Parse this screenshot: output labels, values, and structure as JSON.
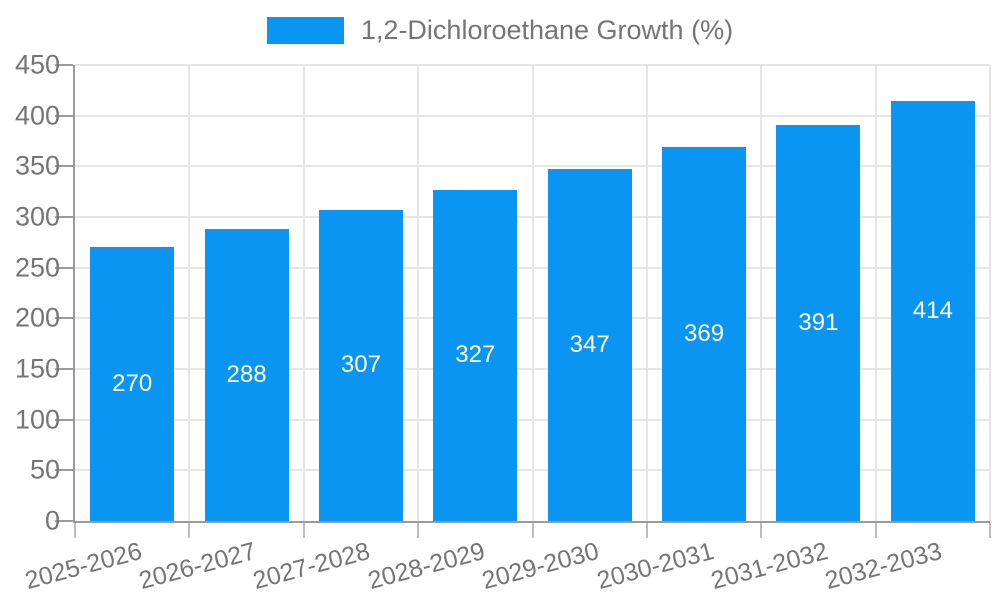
{
  "chart_data": {
    "type": "bar",
    "title": "",
    "xlabel": "",
    "ylabel": "",
    "legend": {
      "label": "1,2-Dichloroethane Growth (%)",
      "swatch_color": "#0b95f2",
      "position": "top"
    },
    "categories": [
      "2025-2026",
      "2026-2027",
      "2027-2028",
      "2028-2029",
      "2029-2030",
      "2030-2031",
      "2031-2032",
      "2032-2033"
    ],
    "values": [
      270,
      288,
      307,
      327,
      347,
      369,
      391,
      414
    ],
    "ylim": [
      0,
      450
    ],
    "yticks": [
      0,
      50,
      100,
      150,
      200,
      250,
      300,
      350,
      400,
      450
    ],
    "grid": true,
    "bar_color": "#0b95f2",
    "bar_label_color": "#ffffff",
    "axis_text_color": "#757575",
    "gridline_color": "#e6e6e6",
    "axis_line_color": "#9a9a9a"
  }
}
